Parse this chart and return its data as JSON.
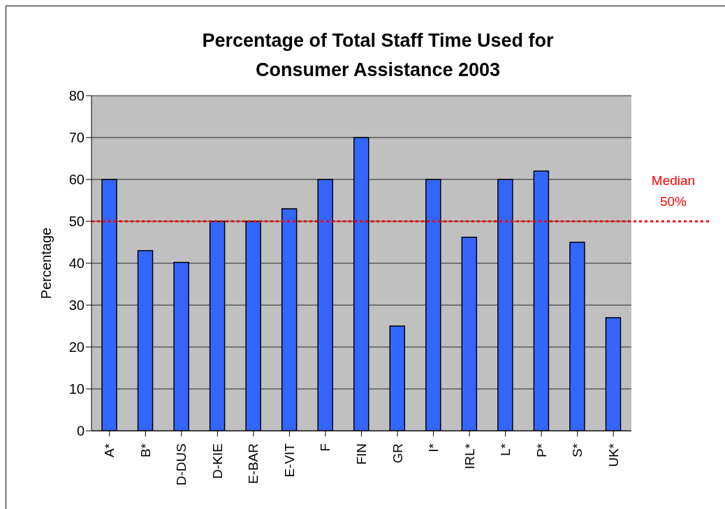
{
  "chart_data": {
    "type": "bar",
    "title": "Percentage of Total Staff Time Used for Consumer Assistance 2003",
    "ylabel": "Percentage",
    "categories": [
      "A*",
      "B*",
      "D-DUS",
      "D-KIE",
      "E-BAR",
      "E-VIT",
      "F",
      "FIN",
      "GR",
      "I*",
      "IRL*",
      "L*",
      "P*",
      "S*",
      "UK*"
    ],
    "values": [
      60,
      43,
      40.2,
      50,
      50,
      53,
      60,
      70,
      25,
      60,
      46.2,
      60,
      62,
      45,
      27
    ],
    "color": "#3366ff",
    "ylim": [
      0,
      80
    ],
    "yticks": [
      0,
      10,
      20,
      30,
      40,
      50,
      60,
      70,
      80
    ],
    "grid": "y",
    "legend": false,
    "ref_lines": [
      {
        "axis": "y",
        "value": 50,
        "label": "Median 50%",
        "color": "#ff0000",
        "line_style": "dotted"
      }
    ]
  }
}
